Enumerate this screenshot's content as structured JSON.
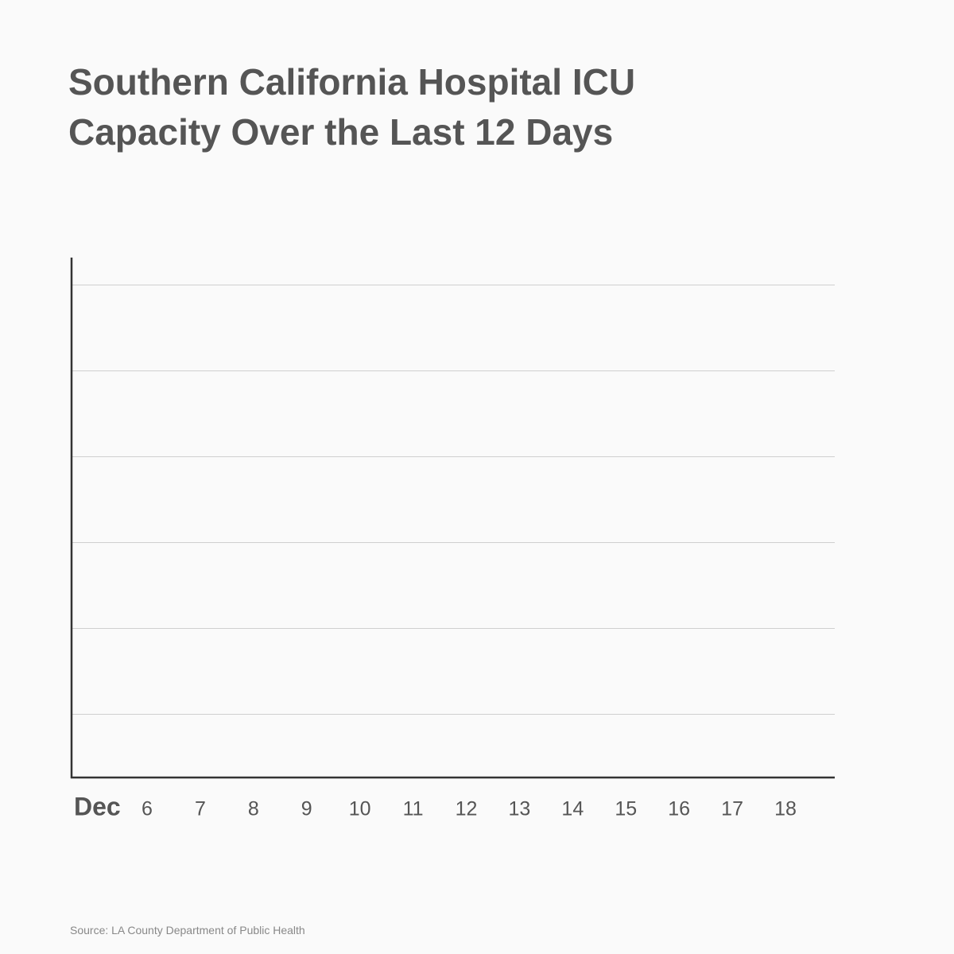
{
  "chart_data": {
    "type": "line",
    "title": "Southern California Hospital ICU Capacity Over the Last 12 Days",
    "x_month": "Dec",
    "categories": [
      "6",
      "7",
      "8",
      "9",
      "10",
      "11",
      "12",
      "13",
      "14",
      "15",
      "16",
      "17",
      "18"
    ],
    "source": "Source: LA County Department of Public Health",
    "grid": true
  }
}
